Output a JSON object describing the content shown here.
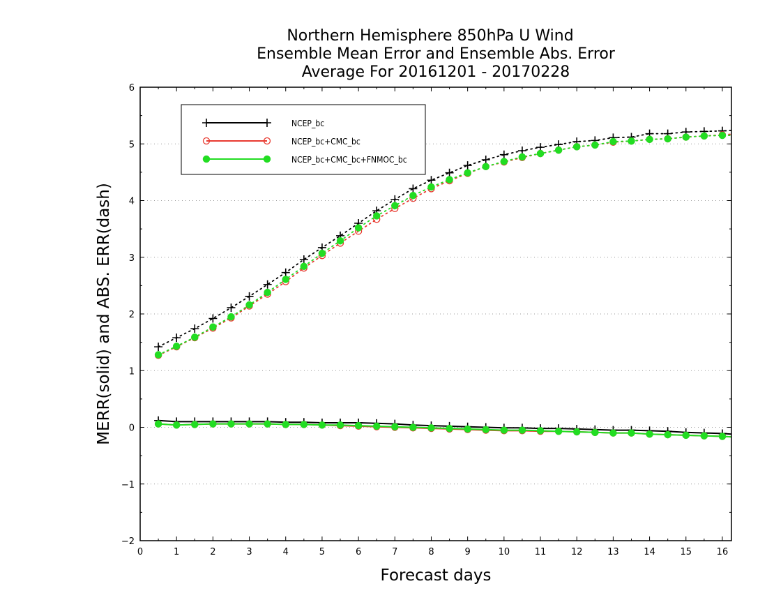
{
  "chart_data": {
    "type": "line",
    "title_lines": [
      "Northern Hemisphere 850hPa U Wind",
      "Ensemble Mean Error and Ensemble Abs. Error",
      "Average For 20161201 - 20170228"
    ],
    "xlabel": "Forecast days",
    "ylabel": "MERR(solid) and ABS. ERR(dash)",
    "xlim": [
      0,
      16.25
    ],
    "ylim": [
      -2,
      6
    ],
    "x_ticks": [
      0,
      1,
      2,
      3,
      4,
      5,
      6,
      7,
      8,
      9,
      10,
      11,
      12,
      13,
      14,
      15,
      16
    ],
    "y_ticks": [
      -2,
      -1,
      0,
      1,
      2,
      3,
      4,
      5,
      6
    ],
    "grid": "horizontal dotted",
    "legend_position": "top-left",
    "x": [
      0.5,
      1,
      1.5,
      2,
      2.5,
      3,
      3.5,
      4,
      4.5,
      5,
      5.5,
      6,
      6.5,
      7,
      7.5,
      8,
      8.5,
      9,
      9.5,
      10,
      10.5,
      11,
      11.5,
      12,
      12.5,
      13,
      13.5,
      14,
      14.5,
      15,
      15.5,
      16,
      16.25
    ],
    "series": [
      {
        "name": "NCEP_bc",
        "color": "#000000",
        "marker": "plus",
        "merr": [
          0.12,
          0.1,
          0.1,
          0.1,
          0.1,
          0.1,
          0.1,
          0.09,
          0.09,
          0.08,
          0.08,
          0.08,
          0.07,
          0.06,
          0.04,
          0.03,
          0.02,
          0.01,
          0.0,
          -0.01,
          -0.01,
          -0.02,
          -0.02,
          -0.03,
          -0.04,
          -0.05,
          -0.05,
          -0.06,
          -0.07,
          -0.09,
          -0.1,
          -0.11,
          -0.12
        ],
        "abs_err": [
          1.42,
          1.58,
          1.74,
          1.92,
          2.11,
          2.31,
          2.52,
          2.73,
          2.96,
          3.17,
          3.38,
          3.6,
          3.82,
          4.02,
          4.21,
          4.36,
          4.49,
          4.62,
          4.72,
          4.81,
          4.88,
          4.94,
          4.99,
          5.04,
          5.06,
          5.11,
          5.12,
          5.18,
          5.18,
          5.21,
          5.22,
          5.23,
          5.24
        ]
      },
      {
        "name": "NCEP_bc+CMC_bc",
        "color": "#e8392f",
        "marker": "open-circle",
        "merr": [
          0.06,
          0.04,
          0.05,
          0.06,
          0.06,
          0.06,
          0.06,
          0.05,
          0.05,
          0.04,
          0.03,
          0.02,
          0.01,
          0.0,
          -0.01,
          -0.02,
          -0.03,
          -0.04,
          -0.05,
          -0.06,
          -0.06,
          -0.07,
          -0.07,
          -0.08,
          -0.09,
          -0.1,
          -0.1,
          -0.12,
          -0.13,
          -0.14,
          -0.15,
          -0.16,
          -0.17
        ],
        "abs_err": [
          1.27,
          1.42,
          1.58,
          1.75,
          1.93,
          2.14,
          2.35,
          2.57,
          2.81,
          3.03,
          3.25,
          3.46,
          3.67,
          3.86,
          4.04,
          4.21,
          4.35,
          4.48,
          4.6,
          4.68,
          4.76,
          4.83,
          4.89,
          4.95,
          4.98,
          5.03,
          5.05,
          5.08,
          5.09,
          5.12,
          5.14,
          5.16,
          5.17
        ]
      },
      {
        "name": "NCEP_bc+CMC_bc+FNMOC_bc",
        "color": "#22dd22",
        "marker": "filled-circle",
        "merr": [
          0.06,
          0.04,
          0.05,
          0.06,
          0.06,
          0.06,
          0.06,
          0.05,
          0.05,
          0.04,
          0.04,
          0.03,
          0.02,
          0.01,
          0.0,
          -0.01,
          -0.02,
          -0.03,
          -0.04,
          -0.05,
          -0.05,
          -0.06,
          -0.07,
          -0.08,
          -0.09,
          -0.1,
          -0.1,
          -0.12,
          -0.13,
          -0.14,
          -0.15,
          -0.16,
          -0.17
        ],
        "abs_err": [
          1.28,
          1.43,
          1.59,
          1.77,
          1.95,
          2.16,
          2.38,
          2.61,
          2.84,
          3.07,
          3.29,
          3.52,
          3.73,
          3.91,
          4.09,
          4.24,
          4.37,
          4.49,
          4.6,
          4.69,
          4.77,
          4.83,
          4.89,
          4.95,
          4.98,
          5.04,
          5.05,
          5.08,
          5.09,
          5.12,
          5.14,
          5.15,
          5.15
        ]
      }
    ]
  }
}
